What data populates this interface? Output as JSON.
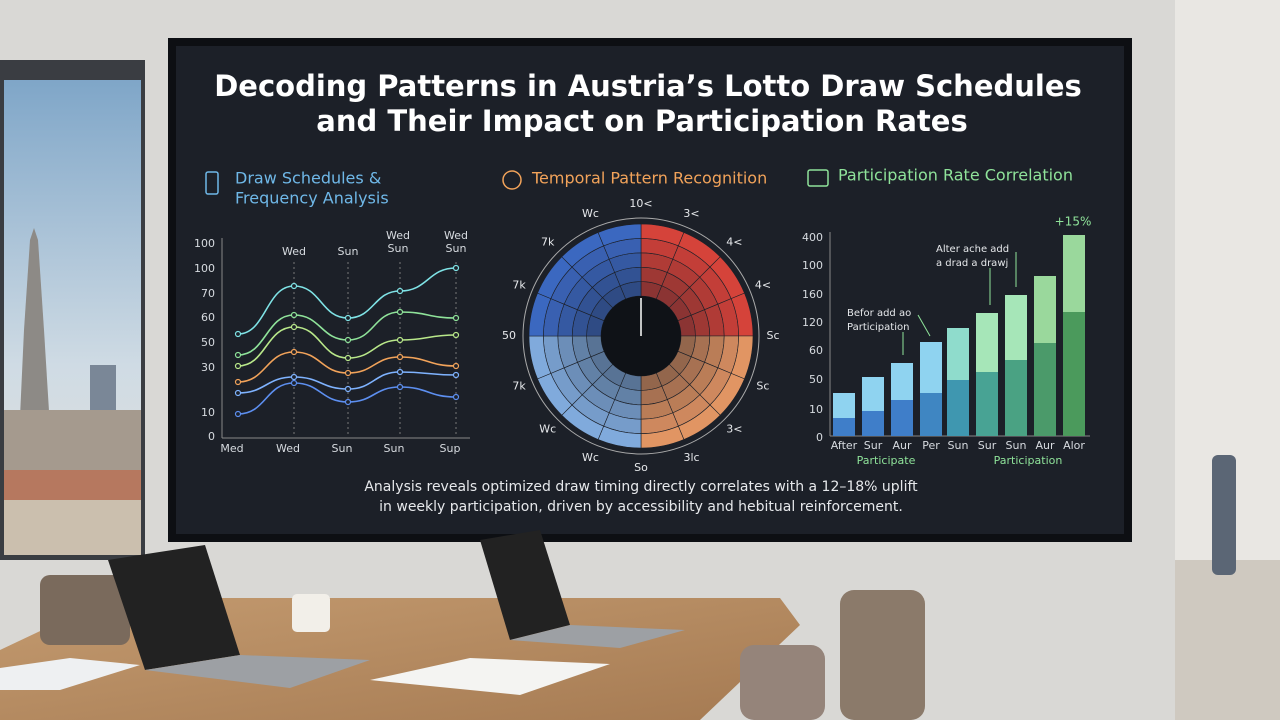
{
  "screen": {
    "title": [
      "Decoding Patterns in Austria’s Lotto Draw Schedules",
      "and Their Impact on Participation Rates"
    ],
    "panels": [
      {
        "title": [
          "Draw Schedules &",
          "Frequency Analysis"
        ],
        "y_labels": [
          "100",
          "100",
          "70",
          "60",
          "50",
          "30",
          "10",
          "0"
        ],
        "top_labels": [
          "Wed",
          "Sun",
          "Wed",
          "Sun",
          "Wed",
          "Sun"
        ],
        "x_labels": [
          "Med",
          "Wed",
          "Sun",
          "Sun",
          "Sup"
        ]
      },
      {
        "title": [
          "Temporal Pattern Recognition"
        ],
        "ring_labels": [
          "10<",
          "3<",
          "4<",
          "4<",
          "Sc",
          "Sc",
          "3<",
          "3lc",
          "So",
          "Wc",
          "Wc",
          "7k",
          "50",
          "7k",
          "7k",
          "Wc"
        ]
      },
      {
        "title": [
          "Participation Rate Correlation"
        ],
        "highlight": "+15%",
        "y_labels": [
          "400",
          "100",
          "160",
          "120",
          "60",
          "50",
          "10",
          "0"
        ],
        "annotations": [
          [
            "Alter ache add",
            "a drad a drawj"
          ],
          [
            "Befor add ao",
            "Participation"
          ]
        ],
        "x_labels": [
          "After",
          "Sur",
          "Aur",
          "Per",
          "Sun",
          "Sur",
          "Sun",
          "Aur",
          "Alor"
        ],
        "group_labels": [
          "Participate",
          "Participation"
        ]
      }
    ],
    "caption": [
      "Analysis reveals optimized draw timing directly correlates with a 12–18% uplift",
      "in weekly participation, driven by accessibility and hebitual reinforcement."
    ]
  }
}
